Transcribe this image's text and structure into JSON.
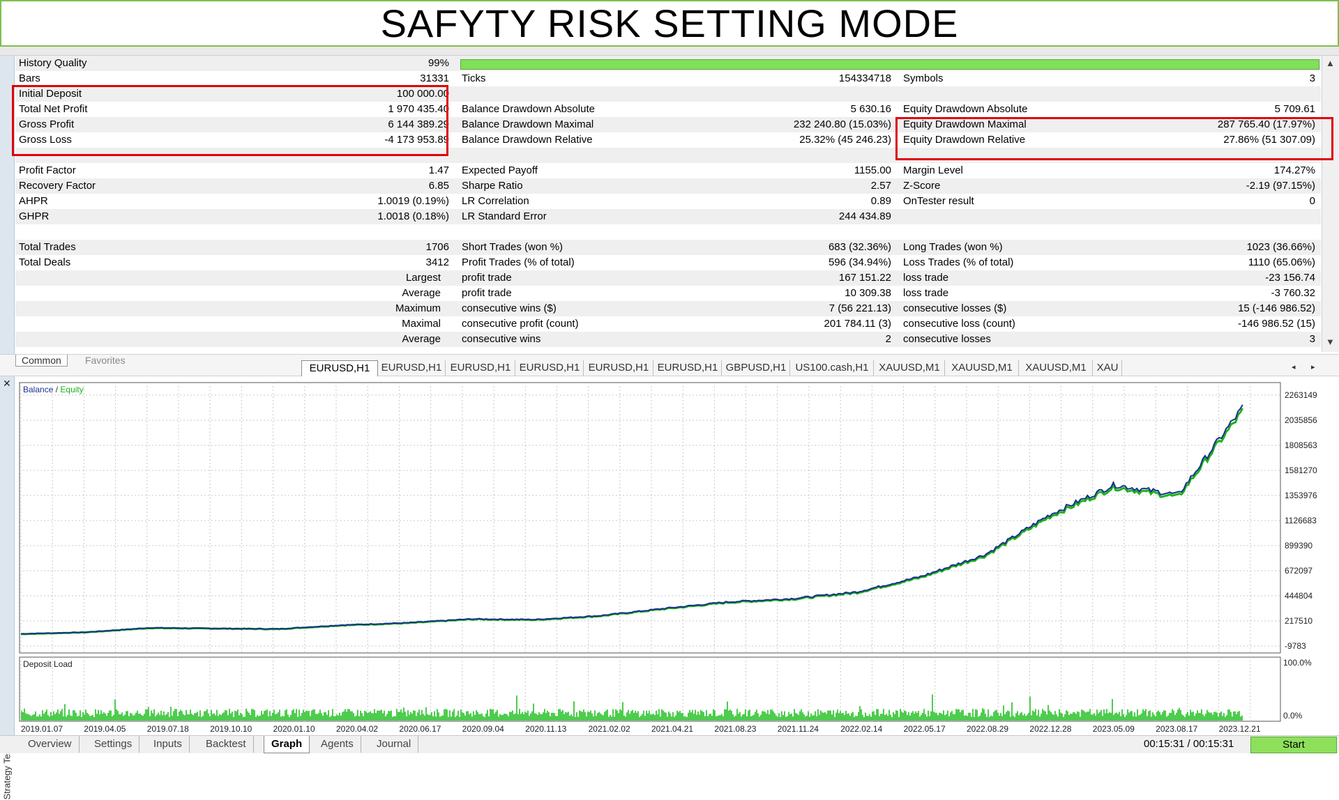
{
  "banner": {
    "title": "SAFYTY RISK SETTING MODE"
  },
  "report": {
    "rows": [
      {
        "c1l": "History Quality",
        "c1v": "99%",
        "bar": true,
        "c3l": "",
        "c3v": ""
      },
      {
        "c1l": "Bars",
        "c1v": "31331",
        "c2l": "Ticks",
        "c2v": "154334718",
        "c3l": "Symbols",
        "c3v": "3"
      },
      {
        "c1l": "Initial Deposit",
        "c1v": "100 000.00"
      },
      {
        "c1l": "Total Net Profit",
        "c1v": "1 970 435.40",
        "c2l": "Balance Drawdown Absolute",
        "c2v": "5 630.16",
        "c3l": "Equity Drawdown Absolute",
        "c3v": "5 709.61"
      },
      {
        "c1l": "Gross Profit",
        "c1v": "6 144 389.29",
        "c2l": "Balance Drawdown Maximal",
        "c2v": "232 240.80 (15.03%)",
        "c3l": "Equity Drawdown Maximal",
        "c3v": "287 765.40 (17.97%)"
      },
      {
        "c1l": "Gross Loss",
        "c1v": "-4 173 953.89",
        "c2l": "Balance Drawdown Relative",
        "c2v": "25.32% (45 246.23)",
        "c3l": "Equity Drawdown Relative",
        "c3v": "27.86% (51 307.09)"
      },
      {},
      {
        "c1l": "Profit Factor",
        "c1v": "1.47",
        "c2l": "Expected Payoff",
        "c2v": "1155.00",
        "c3l": "Margin Level",
        "c3v": "174.27%"
      },
      {
        "c1l": "Recovery Factor",
        "c1v": "6.85",
        "c2l": "Sharpe Ratio",
        "c2v": "2.57",
        "c3l": "Z-Score",
        "c3v": "-2.19 (97.15%)"
      },
      {
        "c1l": "AHPR",
        "c1v": "1.0019 (0.19%)",
        "c2l": "LR Correlation",
        "c2v": "0.89",
        "c3l": "OnTester result",
        "c3v": "0"
      },
      {
        "c1l": "GHPR",
        "c1v": "1.0018 (0.18%)",
        "c2l": "LR Standard Error",
        "c2v": "244 434.89"
      },
      {},
      {
        "c1l": "Total Trades",
        "c1v": "1706",
        "c2l": "Short Trades (won %)",
        "c2v": "683 (32.36%)",
        "c3l": "Long Trades (won %)",
        "c3v": "1023 (36.66%)"
      },
      {
        "c1l": "Total Deals",
        "c1v": "3412",
        "c2l": "Profit Trades (% of total)",
        "c2v": "596 (34.94%)",
        "c3l": "Loss Trades (% of total)",
        "c3v": "1110 (65.06%)"
      },
      {
        "c1m": "Largest",
        "c2l": "profit trade",
        "c2v": "167 151.22",
        "c3l": "loss trade",
        "c3v": "-23 156.74"
      },
      {
        "c1m": "Average",
        "c2l": "profit trade",
        "c2v": "10 309.38",
        "c3l": "loss trade",
        "c3v": "-3 760.32"
      },
      {
        "c1m": "Maximum",
        "c2l": "consecutive wins ($)",
        "c2v": "7 (56 221.13)",
        "c3l": "consecutive losses ($)",
        "c3v": "15 (-146 986.52)"
      },
      {
        "c1m": "Maximal",
        "c2l": "consecutive profit (count)",
        "c2v": "201 784.11 (3)",
        "c3l": "consecutive loss (count)",
        "c3v": "-146 986.52 (15)"
      },
      {
        "c1m": "Average",
        "c2l": "consecutive wins",
        "c2v": "2",
        "c3l": "consecutive losses",
        "c3v": "3"
      }
    ]
  },
  "section_tabs": {
    "common": "Common",
    "favorites": "Favorites"
  },
  "symbol_tabs": [
    "EURUSD,H1",
    "EURUSD,H1",
    "EURUSD,H1",
    "EURUSD,H1",
    "EURUSD,H1",
    "EURUSD,H1",
    "GBPUSD,H1",
    "US100.cash,H1",
    "XAUUSD,M1",
    "XAUUSD,M1",
    "XAUUSD,M1",
    "XAU"
  ],
  "active_symbol_tab": 0,
  "chart_data": {
    "type": "line",
    "legend": {
      "balance": "Balance",
      "separator": " / ",
      "equity": "Equity",
      "placement": "top-left"
    },
    "colors": {
      "balance": "#1a2f8f",
      "equity": "#1bb21b",
      "deposit_load": "#22c022",
      "grid": "#c8c8c8"
    },
    "y_ticks": [
      "2263149",
      "2035856",
      "1808563",
      "1581270",
      "1353976",
      "1126683",
      "899390",
      "672097",
      "444804",
      "217510",
      "-9783"
    ],
    "ylim": [
      -9783,
      2263149
    ],
    "x_ticks": [
      "2019.01.07",
      "2019.04.05",
      "2019.07.18",
      "2019.10.10",
      "2020.01.10",
      "2020.04.02",
      "2020.06.17",
      "2020.09.04",
      "2020.11.13",
      "2021.02.02",
      "2021.04.21",
      "2021.08.23",
      "2021.11.24",
      "2022.02.14",
      "2022.05.17",
      "2022.08.29",
      "2022.12.28",
      "2023.05.09",
      "2023.08.17",
      "2023.12.21"
    ],
    "series": [
      {
        "name": "Balance",
        "x": [
          "2019.01.07",
          "2019.04.05",
          "2019.07.18",
          "2019.10.10",
          "2020.01.10",
          "2020.04.02",
          "2020.06.17",
          "2020.09.04",
          "2020.11.13",
          "2021.02.02",
          "2021.04.21",
          "2021.08.23",
          "2021.11.24",
          "2022.02.14",
          "2022.05.17",
          "2022.08.29",
          "2022.12.28",
          "2023.05.09",
          "2023.08.17",
          "2023.12.21"
        ],
        "values": [
          100000,
          115000,
          155000,
          150000,
          145000,
          180000,
          200000,
          235000,
          230000,
          265000,
          330000,
          390000,
          420000,
          480000,
          620000,
          820000,
          1180000,
          1450000,
          1360000,
          2150000
        ]
      }
    ],
    "deposit_load": {
      "title": "Deposit Load",
      "y_ticks": [
        "100.0%",
        "0.0%"
      ],
      "ylim": [
        0,
        100
      ],
      "typical_percent": 15,
      "peak_percent": 45
    }
  },
  "bottom_tabs": [
    "Overview",
    "Settings",
    "Inputs",
    "Backtest",
    "Graph",
    "Agents",
    "Journal"
  ],
  "active_bottom_tab": 4,
  "status": {
    "timer": "00:15:31 / 00:15:31",
    "start_label": "Start"
  },
  "side_label": "Strategy Tester",
  "icons": {
    "close": "close-icon",
    "scroll_up": "scroll-up-icon",
    "scroll_down": "scroll-down-icon",
    "tab_left": "chevron-left-icon",
    "tab_right": "chevron-right-icon"
  }
}
